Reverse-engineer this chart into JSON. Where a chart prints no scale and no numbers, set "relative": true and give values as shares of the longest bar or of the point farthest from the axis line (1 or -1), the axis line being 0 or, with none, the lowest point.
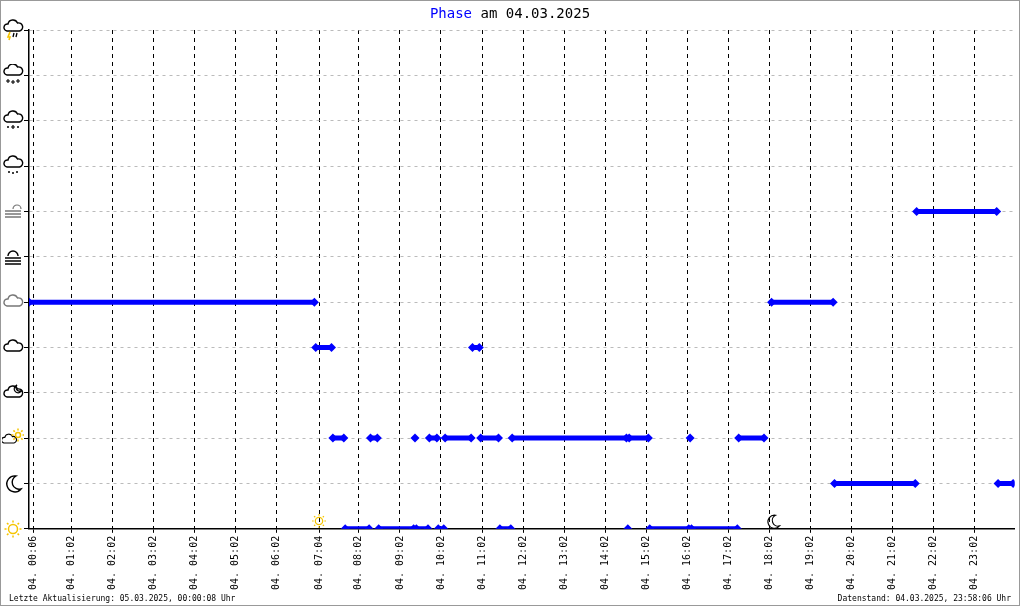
{
  "chart_data": {
    "type": "line",
    "title": "Phase am 04.03.2025",
    "annotations": [
      "Letzte Aktualisierung: 05.03.2025, 00:00:08 Uhr",
      "Datenstand: 04.03.2025, 23:58:06 Uhr"
    ],
    "x": [
      "2025-03-04T00:00",
      "2025-03-04T06:57",
      "2025-03-04T06:58",
      "2025-03-04T06:59",
      "2025-03-04T07:22",
      "2025-03-04T07:23",
      "2025-03-04T07:24",
      "2025-03-04T07:40",
      "2025-03-04T07:41",
      "2025-03-04T07:42",
      "2025-03-04T08:17",
      "2025-03-04T08:18",
      "2025-03-04T08:19",
      "2025-03-04T08:29",
      "2025-03-04T08:30",
      "2025-03-04T08:31",
      "2025-03-04T09:22",
      "2025-03-04T09:23",
      "2025-03-04T09:24",
      "2025-03-04T09:25",
      "2025-03-04T09:26",
      "2025-03-04T09:43",
      "2025-03-04T09:44",
      "2025-03-04T09:45",
      "2025-03-04T09:56",
      "2025-03-04T09:57",
      "2025-03-04T09:58",
      "2025-03-04T10:06",
      "2025-03-04T10:07",
      "2025-03-04T10:08",
      "2025-03-04T10:46",
      "2025-03-04T10:47",
      "2025-03-04T10:48",
      "2025-03-04T10:58",
      "2025-03-04T10:59",
      "2025-03-04T11:00",
      "2025-03-04T11:26",
      "2025-03-04T11:27",
      "2025-03-04T11:28",
      "2025-03-04T11:44",
      "2025-03-04T11:45",
      "2025-03-04T11:46",
      "2025-03-04T14:33",
      "2025-03-04T14:34",
      "2025-03-04T14:35",
      "2025-03-04T14:36",
      "2025-03-04T14:37",
      "2025-03-04T15:05",
      "2025-03-04T15:06",
      "2025-03-04T15:07",
      "2025-03-04T16:04",
      "2025-03-04T16:05",
      "2025-03-04T16:06",
      "2025-03-04T16:07",
      "2025-03-04T16:08",
      "2025-03-04T17:15",
      "2025-03-04T17:16",
      "2025-03-04T17:17",
      "2025-03-04T17:54",
      "2025-03-04T17:55",
      "2025-03-04T18:05",
      "2025-03-04T19:35",
      "2025-03-04T19:36",
      "2025-03-04T19:37",
      "2025-03-04T21:35",
      "2025-03-04T21:36",
      "2025-03-04T21:37",
      "2025-03-04T23:34",
      "2025-03-04T23:35",
      "2025-03-04T23:36",
      "2025-03-04T23:58"
    ],
    "series": [
      {
        "color": "#0000ff",
        "values": [
          0.714,
          0.714,
          null,
          0.571,
          0.571,
          null,
          0.286,
          0.286,
          null,
          0,
          0,
          null,
          0.286,
          0.286,
          null,
          0,
          0,
          null,
          0.286,
          null,
          0,
          0,
          null,
          0.286,
          0.286,
          null,
          0,
          0,
          null,
          0.286,
          0.286,
          null,
          0.571,
          0.571,
          null,
          0.286,
          0.286,
          null,
          0,
          0,
          null,
          0.286,
          0.286,
          null,
          0,
          null,
          0.286,
          0.286,
          null,
          0,
          0,
          null,
          0.286,
          null,
          0,
          0,
          null,
          0.286,
          0.286,
          null,
          0.714,
          0.714,
          null,
          0.143,
          0.143,
          null,
          1,
          1,
          null,
          0.143,
          0.143
        ]
      }
    ],
    "relative": true,
    "xlim": [
      "2025-03-04T00:00",
      "2025-03-05T00:00"
    ],
    "xticks": [
      {
        "value": "2025-03-04T00:06",
        "label": "04. 00:06"
      },
      {
        "value": "2025-03-04T01:02",
        "label": "04. 01:02"
      },
      {
        "value": "2025-03-04T02:02",
        "label": "04. 02:02"
      },
      {
        "value": "2025-03-04T03:02",
        "label": "04. 03:02"
      },
      {
        "value": "2025-03-04T04:02",
        "label": "04. 04:02"
      },
      {
        "value": "2025-03-04T05:02",
        "label": "04. 05:02"
      },
      {
        "value": "2025-03-04T06:02",
        "label": "04. 06:02"
      },
      {
        "value": "2025-03-04T07:04",
        "label": "04. 07:04"
      },
      {
        "value": "2025-03-04T08:02",
        "label": "04. 08:02"
      },
      {
        "value": "2025-03-04T09:02",
        "label": "04. 09:02"
      },
      {
        "value": "2025-03-04T10:02",
        "label": "04. 10:02"
      },
      {
        "value": "2025-03-04T11:02",
        "label": "04. 11:02"
      },
      {
        "value": "2025-03-04T12:02",
        "label": "04. 12:02"
      },
      {
        "value": "2025-03-04T13:02",
        "label": "04. 13:02"
      },
      {
        "value": "2025-03-04T14:02",
        "label": "04. 14:02"
      },
      {
        "value": "2025-03-04T15:02",
        "label": "04. 15:02"
      },
      {
        "value": "2025-03-04T16:02",
        "label": "04. 16:02"
      },
      {
        "value": "2025-03-04T17:02",
        "label": "04. 17:02"
      },
      {
        "value": "2025-03-04T18:02",
        "label": "04. 18:02"
      },
      {
        "value": "2025-03-04T19:02",
        "label": "04. 19:02"
      },
      {
        "value": "2025-03-04T20:02",
        "label": "04. 20:02"
      },
      {
        "value": "2025-03-04T21:02",
        "label": "04. 21:02"
      },
      {
        "value": "2025-03-04T22:02",
        "label": "04. 22:02"
      },
      {
        "value": "2025-03-04T23:02",
        "label": "04. 23:02"
      }
    ],
    "tick_labels": "x",
    "grid": true,
    "legend": false,
    "marker": "diamond",
    "line_style": "solid"
  }
}
